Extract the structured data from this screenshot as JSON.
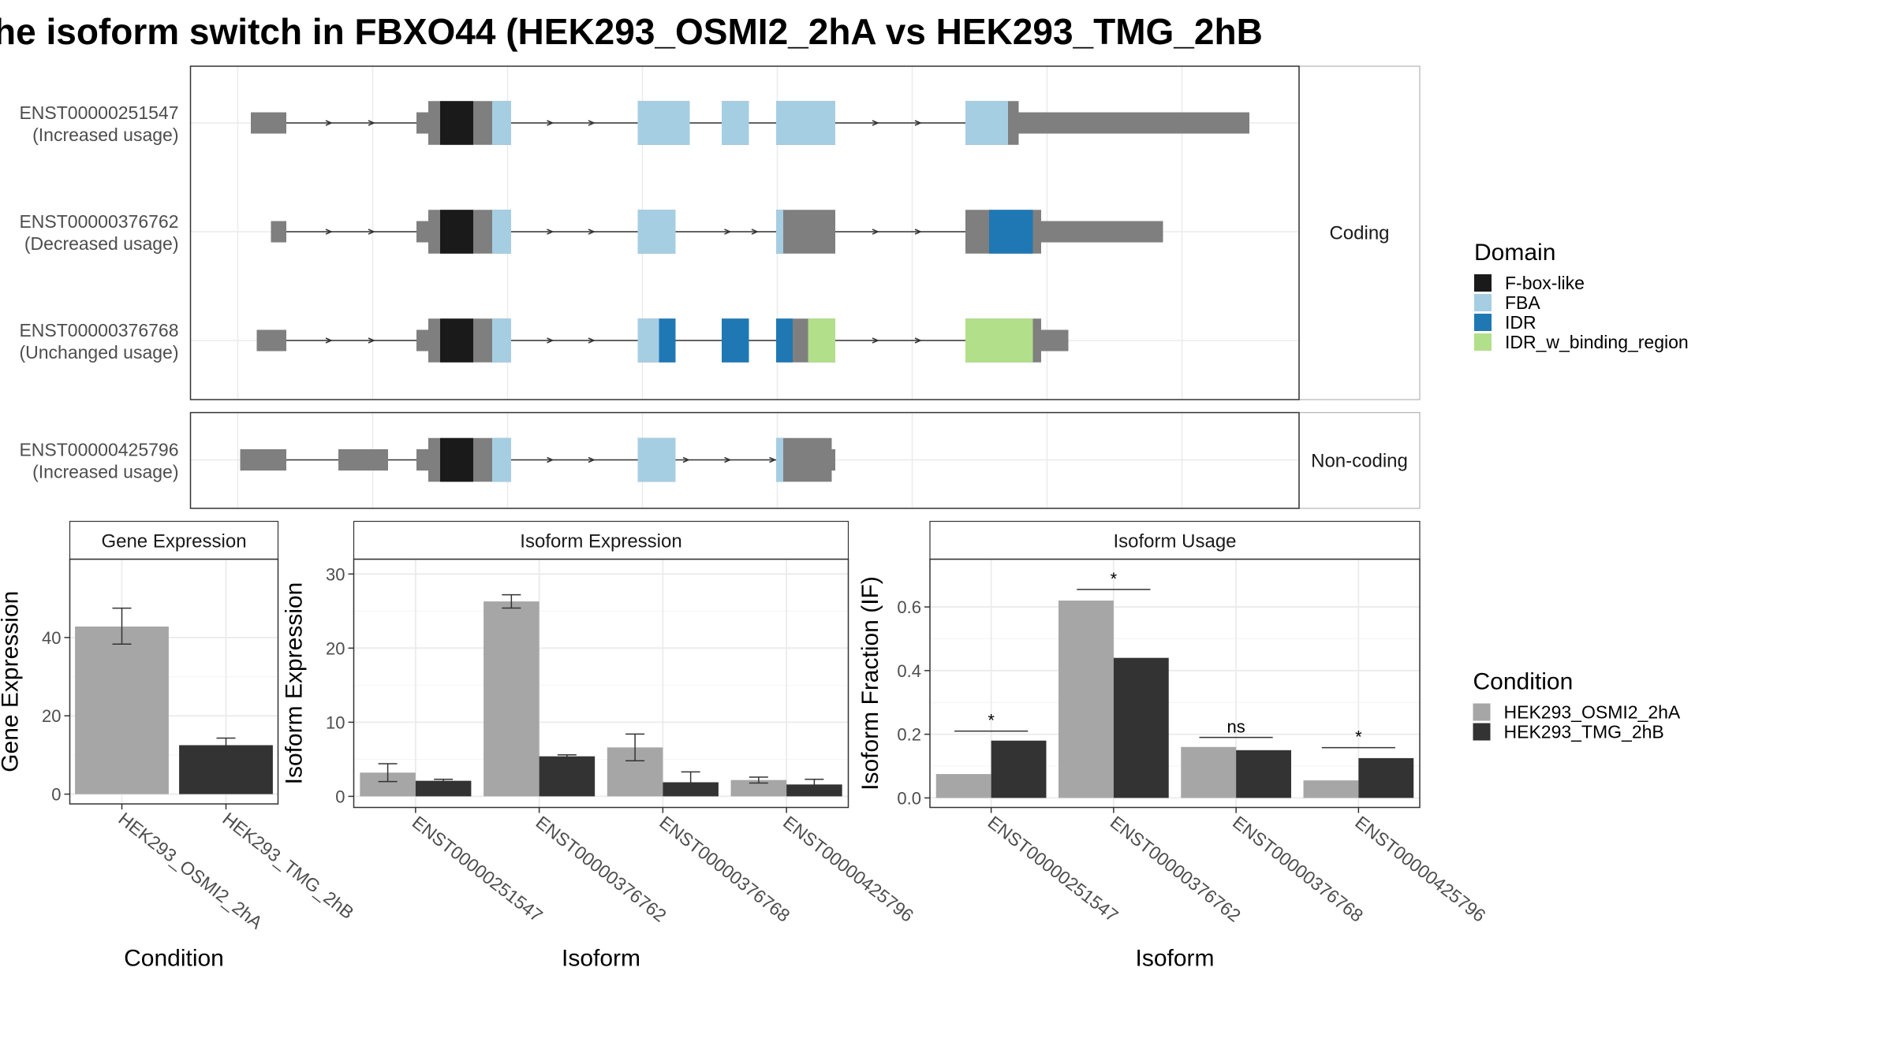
{
  "title": "he isoform switch in FBXO44 (HEK293_OSMI2_2hA vs HEK293_TMG_2hB",
  "colors": {
    "exon": "#7f7f7f",
    "F-box-like": "#1a1a1a",
    "FBA": "#a6cee3",
    "IDR": "#1f78b4",
    "IDR_w_binding_region": "#b2df8a",
    "cond_a": "#a6a6a6",
    "cond_b": "#333333",
    "grid": "#ebebeb",
    "panel_border": "#333333"
  },
  "legends": {
    "domain": {
      "title": "Domain",
      "items": [
        "F-box-like",
        "FBA",
        "IDR",
        "IDR_w_binding_region"
      ]
    },
    "condition": {
      "title": "Condition",
      "items": [
        "HEK293_OSMI2_2hA",
        "HEK293_TMG_2hB"
      ]
    }
  },
  "transcripts": {
    "facets": [
      {
        "label": "Coding",
        "tracks": [
          0,
          1,
          2
        ]
      },
      {
        "label": "Non-coding",
        "tracks": [
          3
        ]
      }
    ],
    "tracks": [
      {
        "id": "ENST00000251547",
        "note": "(Increased usage)",
        "intron": [
          212,
          1056
        ],
        "arrows": [
          280,
          316,
          467,
          502,
          742,
          778
        ],
        "exons": [
          {
            "s": 212,
            "e": 242,
            "h": "thin"
          },
          {
            "s": 352,
            "e": 432,
            "h": "thin"
          },
          {
            "s": 362,
            "e": 432,
            "h": "full"
          },
          {
            "s": 539,
            "e": 583,
            "h": "full"
          },
          {
            "s": 610,
            "e": 633,
            "h": "full"
          },
          {
            "s": 656,
            "e": 706,
            "h": "full"
          },
          {
            "s": 816,
            "e": 861,
            "h": "full"
          },
          {
            "s": 852,
            "e": 1056,
            "h": "thin"
          }
        ],
        "domains": [
          {
            "s": 372,
            "e": 400,
            "d": "F-box-like"
          },
          {
            "s": 416,
            "e": 432,
            "d": "FBA"
          },
          {
            "s": 539,
            "e": 583,
            "d": "FBA"
          },
          {
            "s": 610,
            "e": 633,
            "d": "FBA"
          },
          {
            "s": 656,
            "e": 706,
            "d": "FBA"
          },
          {
            "s": 816,
            "e": 852,
            "d": "FBA"
          }
        ]
      },
      {
        "id": "ENST00000376762",
        "note": "(Decreased usage)",
        "intron": [
          229,
          983
        ],
        "arrows": [
          280,
          316,
          467,
          502,
          617,
          640,
          742,
          778
        ],
        "exons": [
          {
            "s": 229,
            "e": 242,
            "h": "thin"
          },
          {
            "s": 352,
            "e": 432,
            "h": "thin"
          },
          {
            "s": 362,
            "e": 432,
            "h": "full"
          },
          {
            "s": 539,
            "e": 571,
            "h": "full"
          },
          {
            "s": 656,
            "e": 706,
            "h": "full"
          },
          {
            "s": 816,
            "e": 880,
            "h": "full"
          },
          {
            "s": 873,
            "e": 983,
            "h": "thin"
          }
        ],
        "domains": [
          {
            "s": 372,
            "e": 400,
            "d": "F-box-like"
          },
          {
            "s": 416,
            "e": 432,
            "d": "FBA"
          },
          {
            "s": 539,
            "e": 571,
            "d": "FBA"
          },
          {
            "s": 656,
            "e": 662,
            "d": "FBA"
          },
          {
            "s": 836,
            "e": 873,
            "d": "IDR"
          }
        ]
      },
      {
        "id": "ENST00000376768",
        "note": "(Unchanged usage)",
        "intron": [
          217,
          903
        ],
        "arrows": [
          280,
          316,
          467,
          502,
          742,
          778
        ],
        "exons": [
          {
            "s": 217,
            "e": 242,
            "h": "thin"
          },
          {
            "s": 352,
            "e": 432,
            "h": "thin"
          },
          {
            "s": 362,
            "e": 432,
            "h": "full"
          },
          {
            "s": 539,
            "e": 571,
            "h": "full"
          },
          {
            "s": 610,
            "e": 633,
            "h": "full"
          },
          {
            "s": 656,
            "e": 706,
            "h": "full"
          },
          {
            "s": 816,
            "e": 880,
            "h": "full"
          },
          {
            "s": 873,
            "e": 903,
            "h": "thin"
          }
        ],
        "domains": [
          {
            "s": 372,
            "e": 400,
            "d": "F-box-like"
          },
          {
            "s": 416,
            "e": 432,
            "d": "FBA"
          },
          {
            "s": 539,
            "e": 557,
            "d": "FBA"
          },
          {
            "s": 557,
            "e": 571,
            "d": "IDR"
          },
          {
            "s": 610,
            "e": 633,
            "d": "IDR"
          },
          {
            "s": 656,
            "e": 670,
            "d": "IDR"
          },
          {
            "s": 683,
            "e": 706,
            "d": "IDR_w_binding_region"
          },
          {
            "s": 816,
            "e": 873,
            "d": "IDR_w_binding_region"
          }
        ]
      },
      {
        "id": "ENST00000425796",
        "note": "(Increased usage)",
        "intron": [
          203,
          706
        ],
        "arrows": [
          467,
          502,
          582,
          617,
          655
        ],
        "exons": [
          {
            "s": 203,
            "e": 242,
            "h": "thin"
          },
          {
            "s": 286,
            "e": 328,
            "h": "thin"
          },
          {
            "s": 352,
            "e": 432,
            "h": "thin"
          },
          {
            "s": 362,
            "e": 432,
            "h": "full"
          },
          {
            "s": 539,
            "e": 571,
            "h": "full"
          },
          {
            "s": 656,
            "e": 703,
            "h": "full"
          },
          {
            "s": 700,
            "e": 706,
            "h": "thin"
          }
        ],
        "domains": [
          {
            "s": 372,
            "e": 400,
            "d": "F-box-like"
          },
          {
            "s": 416,
            "e": 432,
            "d": "FBA"
          },
          {
            "s": 539,
            "e": 571,
            "d": "FBA"
          },
          {
            "s": 656,
            "e": 662,
            "d": "FBA"
          }
        ]
      }
    ]
  },
  "chart_data": [
    {
      "type": "bar",
      "title": "Gene Expression",
      "xlabel": "Condition",
      "ylabel": "Gene Expression",
      "categories": [
        "HEK293_OSMI2_2hA",
        "HEK293_TMG_2hB"
      ],
      "values": [
        42.8,
        12.5
      ],
      "err_low": [
        38.3,
        10.6
      ],
      "err_high": [
        47.5,
        14.3
      ],
      "ylim": [
        -2.5,
        60
      ],
      "yticks": [
        0,
        20,
        40
      ],
      "grid": true
    },
    {
      "type": "bar",
      "title": "Isoform Expression",
      "xlabel": "Isoform",
      "ylabel": "Isoform Expression",
      "categories": [
        "ENST00000251547",
        "ENST00000376762",
        "ENST00000376768",
        "ENST00000425796"
      ],
      "series": [
        {
          "name": "HEK293_OSMI2_2hA",
          "values": [
            3.2,
            26.3,
            6.6,
            2.2
          ],
          "err_low": [
            2.0,
            25.4,
            4.8,
            1.8
          ],
          "err_high": [
            4.4,
            27.2,
            8.4,
            2.6
          ]
        },
        {
          "name": "HEK293_TMG_2hB",
          "values": [
            2.1,
            5.4,
            1.9,
            1.6
          ],
          "err_low": [
            1.9,
            5.2,
            0.5,
            1.0
          ],
          "err_high": [
            2.3,
            5.6,
            3.3,
            2.3
          ]
        }
      ],
      "ylim": [
        -1.5,
        32
      ],
      "yticks": [
        0,
        10,
        20,
        30
      ],
      "grid": true
    },
    {
      "type": "bar",
      "title": "Isoform Usage",
      "xlabel": "Isoform",
      "ylabel": "Isoform Fraction (IF)",
      "categories": [
        "ENST00000251547",
        "ENST00000376762",
        "ENST00000376768",
        "ENST00000425796"
      ],
      "series": [
        {
          "name": "HEK293_OSMI2_2hA",
          "values": [
            0.075,
            0.62,
            0.16,
            0.055
          ]
        },
        {
          "name": "HEK293_TMG_2hB",
          "values": [
            0.18,
            0.44,
            0.15,
            0.125
          ]
        }
      ],
      "significance": [
        "*",
        "*",
        "ns",
        "*"
      ],
      "sig_level": [
        0.21,
        0.655,
        0.19,
        0.158
      ],
      "ylim": [
        -0.03,
        0.75
      ],
      "yticks": [
        0.0,
        0.2,
        0.4,
        0.6
      ],
      "grid": true
    }
  ]
}
